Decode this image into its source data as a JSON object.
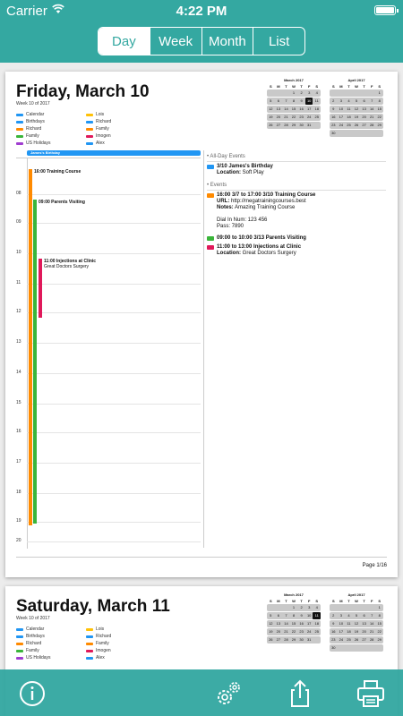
{
  "status_bar": {
    "carrier": "Carrier",
    "time": "4:22 PM"
  },
  "segmented": {
    "items": [
      "Day",
      "Week",
      "Month",
      "List"
    ],
    "selected": "Day"
  },
  "colors": {
    "accent": "#34a8a1",
    "calendar": "#2196f3",
    "birthdays": "#2196f3",
    "richard": "#ff8a00",
    "family": "#ff8a00",
    "lois": "#ffc107",
    "family_green": "#3ab53a",
    "imogen": "#e0195a",
    "us_holidays": "#a03dd0",
    "alex": "#2196f3"
  },
  "pages": [
    {
      "title": "Friday, March 10",
      "week": "Week 10 of 2017",
      "legend": [
        "Calendar",
        "Lois",
        "Birthdays",
        "Richard",
        "Richard",
        "Family",
        "Family",
        "Imogen",
        "US Holidays",
        "Alex"
      ],
      "cal1": {
        "title": "March 2017",
        "head": [
          "S",
          "M",
          "T",
          "W",
          "T",
          "F",
          "S"
        ],
        "rows": [
          [
            "",
            "",
            "",
            "1",
            "2",
            "3",
            "4"
          ],
          [
            "5",
            "6",
            "7",
            "8",
            "9",
            "10",
            "11"
          ],
          [
            "12",
            "13",
            "14",
            "15",
            "16",
            "17",
            "18"
          ],
          [
            "19",
            "20",
            "21",
            "22",
            "23",
            "24",
            "25"
          ],
          [
            "26",
            "27",
            "28",
            "29",
            "30",
            "31",
            ""
          ]
        ]
      },
      "cal2": {
        "title": "April 2017",
        "head": [
          "S",
          "M",
          "T",
          "W",
          "T",
          "F",
          "S"
        ],
        "rows": [
          [
            "",
            "",
            "",
            "",
            "",
            "",
            "1"
          ],
          [
            "2",
            "3",
            "4",
            "5",
            "6",
            "7",
            "8"
          ],
          [
            "9",
            "10",
            "11",
            "12",
            "13",
            "14",
            "15"
          ],
          [
            "16",
            "17",
            "18",
            "19",
            "20",
            "21",
            "22"
          ],
          [
            "23",
            "24",
            "25",
            "26",
            "27",
            "28",
            "29"
          ],
          [
            "30",
            "",
            "",
            "",
            "",
            "",
            ""
          ]
        ]
      },
      "allday_label": "James's Birthday",
      "hours": [
        "08",
        "09",
        "10",
        "11",
        "12",
        "13",
        "14",
        "15",
        "16",
        "17",
        "18",
        "19",
        "20"
      ],
      "timeline_events": [
        {
          "label": "16:00 Training Course",
          "sub": ""
        },
        {
          "label": "09:00 Parents Visiting",
          "sub": ""
        },
        {
          "label": "11:00 Injections at Clinic",
          "sub": "Great Doctors Surgery"
        }
      ],
      "agenda": {
        "allday_heading": "• All-Day Events",
        "events_heading": "• Events",
        "allday": [
          {
            "title": "3/10 James's Birthday",
            "location_label": "Location:",
            "location": "Soft Play"
          }
        ],
        "events": [
          {
            "title": "16:00 3/7 to 17:00 3/10 Training Course",
            "url_label": "URL:",
            "url": "http://megatrainingcourses.best",
            "notes_label": "Notes:",
            "notes": "Amazing Training Course",
            "dial": "Dial In Num: 123 456",
            "pass": "Pass: 7890"
          },
          {
            "title": "09:00 to 10:00 3/13 Parents Visiting"
          },
          {
            "title": "11:00 to 13:00 Injections at Clinic",
            "location_label": "Location:",
            "location": "Great Doctors Surgery"
          }
        ]
      },
      "page_number": "Page 1/16"
    },
    {
      "title": "Saturday, March 11",
      "week": "Week 10 of 2017",
      "legend": [
        "Calendar",
        "Lois",
        "Birthdays",
        "Richard",
        "Richard",
        "Family",
        "Family",
        "Imogen",
        "US Holidays",
        "Alex"
      ],
      "cal1": {
        "title": "March 2017",
        "head": [
          "S",
          "M",
          "T",
          "W",
          "T",
          "F",
          "S"
        ],
        "rows": [
          [
            "",
            "",
            "",
            "1",
            "2",
            "3",
            "4"
          ],
          [
            "5",
            "6",
            "7",
            "8",
            "9",
            "10",
            "11"
          ],
          [
            "12",
            "13",
            "14",
            "15",
            "16",
            "17",
            "18"
          ],
          [
            "19",
            "20",
            "21",
            "22",
            "23",
            "24",
            "25"
          ],
          [
            "26",
            "27",
            "28",
            "29",
            "30",
            "31",
            ""
          ]
        ]
      },
      "cal2": {
        "title": "April 2017",
        "head": [
          "S",
          "M",
          "T",
          "W",
          "T",
          "F",
          "S"
        ],
        "rows": [
          [
            "",
            "",
            "",
            "",
            "",
            "",
            "1"
          ],
          [
            "2",
            "3",
            "4",
            "5",
            "6",
            "7",
            "8"
          ],
          [
            "9",
            "10",
            "11",
            "12",
            "13",
            "14",
            "15"
          ],
          [
            "16",
            "17",
            "18",
            "19",
            "20",
            "21",
            "22"
          ],
          [
            "23",
            "24",
            "25",
            "26",
            "27",
            "28",
            "29"
          ],
          [
            "30",
            "",
            "",
            "",
            "",
            "",
            ""
          ]
        ]
      }
    }
  ],
  "toolbar": {
    "icons": [
      "info-icon",
      "settings-gears-icon",
      "share-icon",
      "print-icon"
    ]
  }
}
